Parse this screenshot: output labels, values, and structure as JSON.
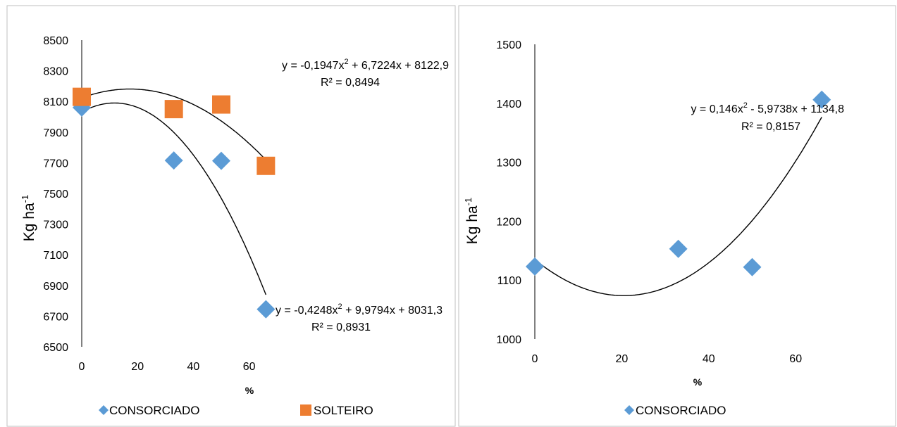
{
  "chart_data": [
    {
      "type": "scatter",
      "xlabel": "%",
      "ylabel": "Kg ha-1",
      "ylabel_main": "Kg ha",
      "ylabel_sup": "-1",
      "xlim": [
        0,
        66
      ],
      "ylim": [
        6500,
        8500
      ],
      "xticks": [
        0,
        20,
        40,
        60
      ],
      "yticks": [
        6500,
        6700,
        6900,
        7100,
        7300,
        7500,
        7700,
        7900,
        8100,
        8300,
        8500
      ],
      "legend": "bottom",
      "series": [
        {
          "name": "CONSORCIADO",
          "marker": "diamond",
          "color": "#5b9bd5",
          "x": [
            0,
            33,
            50,
            66
          ],
          "y": [
            8060,
            7715,
            7713,
            6745
          ],
          "trend": {
            "a": -0.4248,
            "b": 9.9794,
            "c": 8031.3,
            "equation_pre": "y = -0,4248x",
            "equation_post": " + 9,9794x + 8031,3",
            "r2": "R² = 0,8931"
          }
        },
        {
          "name": "SOLTEIRO",
          "marker": "square",
          "color": "#ed7d31",
          "x": [
            0,
            33,
            50,
            66
          ],
          "y": [
            8130,
            8050,
            8080,
            7680
          ],
          "trend": {
            "a": -0.1947,
            "b": 6.7224,
            "c": 8122.9,
            "equation_pre": "y = -0,1947x",
            "equation_post": " + 6,7224x + 8122,9",
            "r2": "R² = 0,8494"
          }
        }
      ]
    },
    {
      "type": "scatter",
      "xlabel": "%",
      "ylabel": "Kg ha-1",
      "ylabel_main": "Kg ha",
      "ylabel_sup": "-1",
      "xlim": [
        0,
        66
      ],
      "ylim": [
        1000,
        1500
      ],
      "xticks": [
        0,
        20,
        40,
        60
      ],
      "yticks": [
        1000,
        1100,
        1200,
        1300,
        1400,
        1500
      ],
      "legend": "bottom",
      "series": [
        {
          "name": "CONSORCIADO",
          "marker": "diamond",
          "color": "#5b9bd5",
          "x": [
            0,
            33,
            50,
            66
          ],
          "y": [
            1123,
            1153,
            1122,
            1406
          ],
          "trend": {
            "a": 0.146,
            "b": -5.9738,
            "c": 1134.8,
            "equation_pre": "y = 0,146x",
            "equation_post": " - 5,9738x + 1134,8",
            "r2": "R² = 0,8157"
          }
        }
      ]
    }
  ],
  "superscript_two": "2"
}
